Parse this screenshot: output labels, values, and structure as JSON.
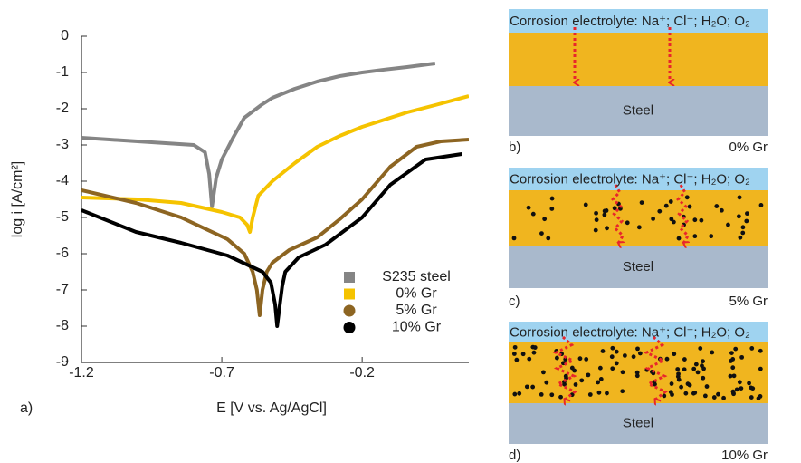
{
  "chart_data": {
    "type": "line",
    "panel_label": "a)",
    "y_label": "log i [A/cm²]",
    "x_label": "E [V vs. Ag/AgCl]",
    "xlim": [
      -1.2,
      0.18
    ],
    "ylim": [
      -9,
      0
    ],
    "xticks": [
      -1.2,
      -0.7,
      -0.2
    ],
    "yticks": [
      0,
      -1,
      -2,
      -3,
      -4,
      -5,
      -6,
      -7,
      -8,
      -9
    ],
    "series": [
      {
        "name": "S235 steel",
        "color": "#858585",
        "marker": "square",
        "x": [
          -1.2,
          -1.1,
          -1.0,
          -0.9,
          -0.8,
          -0.76,
          -0.745,
          -0.735,
          -0.72,
          -0.7,
          -0.66,
          -0.62,
          -0.56,
          -0.52,
          -0.44,
          -0.36,
          -0.28,
          -0.2,
          -0.12,
          -0.04,
          0.06
        ],
        "values": [
          -2.8,
          -2.85,
          -2.9,
          -2.95,
          -3.0,
          -3.2,
          -3.8,
          -4.7,
          -3.9,
          -3.4,
          -2.8,
          -2.25,
          -1.9,
          -1.7,
          -1.45,
          -1.25,
          -1.1,
          -1.0,
          -0.92,
          -0.85,
          -0.75
        ]
      },
      {
        "name": "0% Gr",
        "color": "#f5c300",
        "marker": "square",
        "x": [
          -1.2,
          -1.0,
          -0.845,
          -0.7,
          -0.635,
          -0.61,
          -0.6,
          -0.59,
          -0.57,
          -0.52,
          -0.44,
          -0.36,
          -0.28,
          -0.2,
          -0.12,
          -0.04,
          0.06,
          0.18
        ],
        "values": [
          -4.45,
          -4.5,
          -4.6,
          -4.85,
          -5.0,
          -5.2,
          -5.4,
          -5.0,
          -4.4,
          -4.0,
          -3.5,
          -3.05,
          -2.75,
          -2.5,
          -2.3,
          -2.1,
          -1.9,
          -1.65
        ]
      },
      {
        "name": "5% Gr",
        "color": "#8d6522",
        "marker": "circle",
        "x": [
          -1.2,
          -1.006,
          -0.845,
          -0.68,
          -0.62,
          -0.59,
          -0.575,
          -0.565,
          -0.555,
          -0.54,
          -0.52,
          -0.46,
          -0.36,
          -0.28,
          -0.2,
          -0.1,
          -0.006,
          0.08,
          0.18
        ],
        "values": [
          -4.25,
          -4.6,
          -5.0,
          -5.6,
          -6.0,
          -6.5,
          -7.0,
          -7.7,
          -7.0,
          -6.5,
          -6.25,
          -5.9,
          -5.55,
          -5.05,
          -4.5,
          -3.6,
          -3.05,
          -2.9,
          -2.85
        ]
      },
      {
        "name": "10% Gr",
        "color": "#000000",
        "marker": "circle",
        "x": [
          -1.2,
          -1.006,
          -0.845,
          -0.68,
          -0.555,
          -0.525,
          -0.51,
          -0.503,
          -0.495,
          -0.485,
          -0.474,
          -0.426,
          -0.33,
          -0.2,
          -0.1,
          0.026,
          0.155
        ],
        "values": [
          -4.8,
          -5.4,
          -5.7,
          -6.05,
          -6.5,
          -6.8,
          -7.4,
          -8.0,
          -7.5,
          -6.9,
          -6.5,
          -6.1,
          -5.75,
          -5.0,
          -4.1,
          -3.4,
          -3.25
        ]
      }
    ]
  },
  "diagrams": [
    {
      "electrolyte": "Corrosion electrolyte: Na⁺; Cl⁻; H₂O; O₂",
      "substrate": "Steel",
      "panel_label": "b)",
      "label": "0% Gr"
    },
    {
      "electrolyte": "Corrosion electrolyte: Na⁺; Cl⁻; H₂O; O₂",
      "substrate": "Steel",
      "panel_label": "c)",
      "label": "5% Gr"
    },
    {
      "electrolyte": "Corrosion electrolyte: Na⁺; Cl⁻; H₂O; O₂",
      "substrate": "Steel",
      "panel_label": "d)",
      "label": "10% Gr"
    }
  ]
}
